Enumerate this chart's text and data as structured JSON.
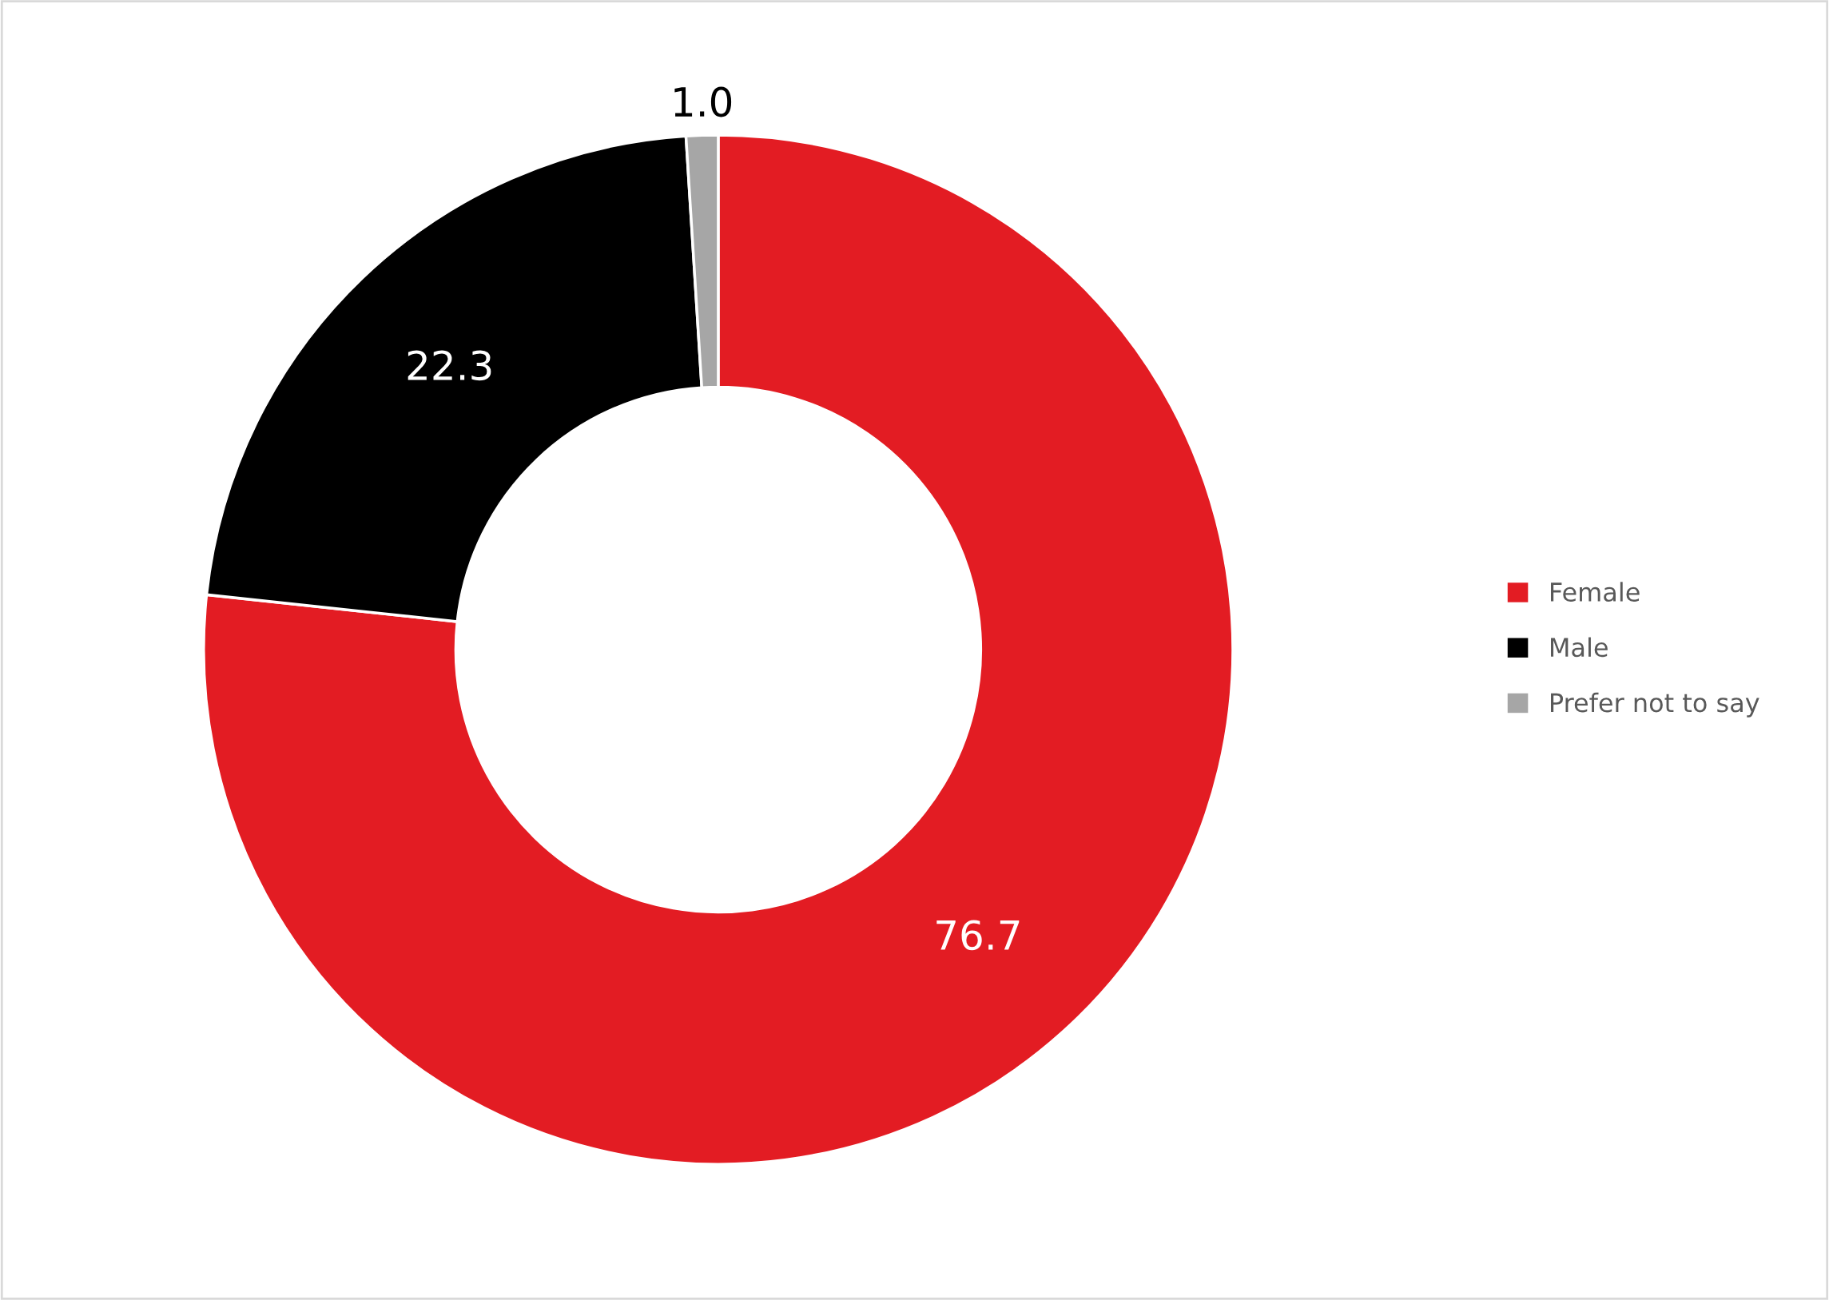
{
  "chart_data": {
    "type": "donut",
    "categories": [
      "Female",
      "Male",
      "Prefer not to say"
    ],
    "values": [
      76.7,
      22.3,
      1.0
    ],
    "colors": [
      "#e31c23",
      "#000000",
      "#a6a6a6"
    ],
    "value_labels": [
      "76.7",
      "22.3",
      "1.0"
    ],
    "legend": "right"
  }
}
